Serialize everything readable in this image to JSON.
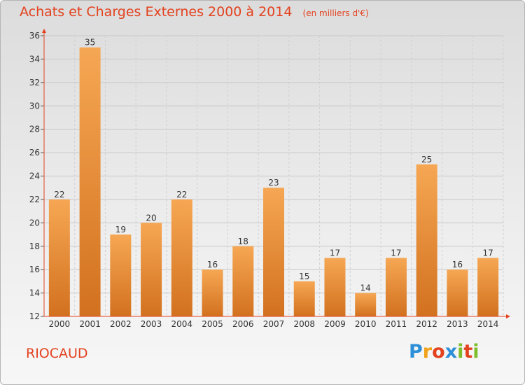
{
  "title": "Achats et Charges Externes 2000 à 2014",
  "unit_note": "(en milliers d'€)",
  "commune": "RIOCAUD",
  "logo": {
    "text": "Proxiti",
    "letters": [
      "P",
      "r",
      "o",
      "x",
      "i",
      "t",
      "i"
    ],
    "colors": [
      "#2d8fd8",
      "#f0a21c",
      "#e3421f",
      "#2d8fd8",
      "#7cbf2a",
      "#e3421f",
      "#7cbf2a"
    ]
  },
  "colors": {
    "title": "#e3421f",
    "bar_top": "#f6a753",
    "bar_bottom": "#d2711f",
    "axis": "#e3421f"
  },
  "chart_data": {
    "type": "bar",
    "title": "Achats et Charges Externes 2000 à 2014",
    "categories": [
      "2000",
      "2001",
      "2002",
      "2003",
      "2004",
      "2005",
      "2006",
      "2007",
      "2008",
      "2009",
      "2010",
      "2011",
      "2012",
      "2013",
      "2014"
    ],
    "values": [
      22,
      35,
      19,
      20,
      22,
      16,
      18,
      23,
      15,
      17,
      14,
      17,
      25,
      16,
      17
    ],
    "ylim": [
      12,
      36
    ],
    "yticks": [
      12,
      14,
      16,
      18,
      20,
      22,
      24,
      26,
      28,
      30,
      32,
      34,
      36
    ],
    "grid": true
  }
}
